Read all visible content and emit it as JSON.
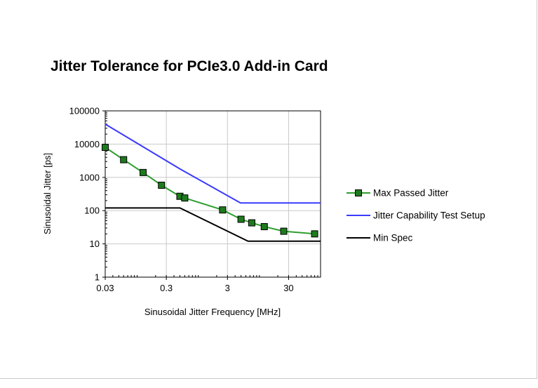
{
  "chart_data": {
    "type": "line",
    "title": "Jitter Tolerance for PCIe3.0 Add-in Card",
    "xlabel": "Sinusoidal Jitter Frequency [MHz]",
    "ylabel": "Sinusoidal Jitter  [ps]",
    "x_scale": "log",
    "y_scale": "log",
    "xlim": [
      0.03,
      100
    ],
    "ylim": [
      1,
      100000
    ],
    "x_ticks": [
      0.03,
      0.3,
      3,
      30
    ],
    "x_tick_labels": [
      "0.03",
      "0.3",
      "3",
      "30"
    ],
    "y_ticks": [
      1,
      10,
      100,
      1000,
      10000,
      100000
    ],
    "y_tick_labels": [
      "1",
      "10",
      "100",
      "1000",
      "10000",
      "100000"
    ],
    "grid": true,
    "legend_position": "right",
    "series": [
      {
        "name": "Max Passed Jitter",
        "color": "#2e9e2e",
        "marker": "square",
        "marker_color": "#1e7a1e",
        "x": [
          0.03,
          0.06,
          0.125,
          0.25,
          0.5,
          0.6,
          2.5,
          5,
          7.5,
          12,
          25,
          80
        ],
        "y": [
          8000,
          3400,
          1400,
          580,
          270,
          240,
          105,
          55,
          43,
          33,
          24,
          20
        ]
      },
      {
        "name": "Jitter Capability Test Setup",
        "color": "#3a3aff",
        "marker": "none",
        "x": [
          0.03,
          0.5,
          4.9,
          100
        ],
        "y": [
          40000,
          1800,
          170,
          170
        ]
      },
      {
        "name": "Min Spec",
        "color": "#000000",
        "marker": "none",
        "x": [
          0.03,
          0.5,
          6.5,
          100
        ],
        "y": [
          120,
          120,
          12,
          12
        ]
      }
    ]
  }
}
